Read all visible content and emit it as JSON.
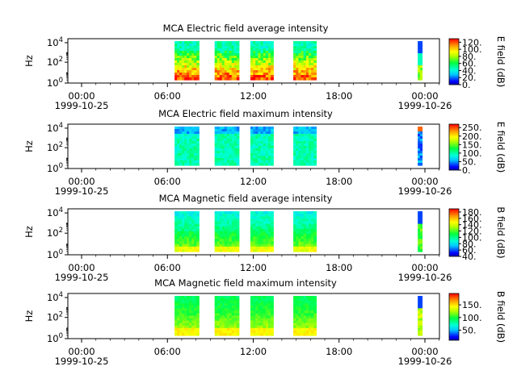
{
  "chart_data": [
    {
      "type": "heatmap",
      "title": "MCA  Electric field average intensity",
      "ylabel": "Hz",
      "yscale": "log",
      "ylim": [
        1,
        40000
      ],
      "y_ticks": [
        {
          "base": "10",
          "exp": "0"
        },
        {
          "base": "10",
          "exp": "2"
        },
        {
          "base": "10",
          "exp": "4"
        }
      ],
      "x_ticks": [
        {
          "time": "00:00",
          "date": "1999-10-25"
        },
        {
          "time": "06:00",
          "date": ""
        },
        {
          "time": "12:00",
          "date": ""
        },
        {
          "time": "18:00",
          "date": ""
        },
        {
          "time": "00:00",
          "date": "1999-10-26"
        }
      ],
      "colorbar_label": "E field (dB)",
      "colorbar_range": [
        0,
        130
      ],
      "colorbar_ticks": [
        "120.",
        "100.",
        "80.",
        "60.",
        "40.",
        "20.",
        "0."
      ],
      "colorbar_tick_values": [
        120,
        100,
        80,
        60,
        40,
        20,
        0
      ],
      "data_intervals_hours": [
        [
          6.5,
          8.2
        ],
        [
          9.3,
          11.0
        ],
        [
          11.8,
          13.4
        ],
        [
          14.8,
          16.4
        ],
        [
          23.5,
          23.8
        ]
      ]
    },
    {
      "type": "heatmap",
      "title": "MCA  Electric field maximum intensity",
      "ylabel": "Hz",
      "yscale": "log",
      "ylim": [
        1,
        40000
      ],
      "y_ticks": [
        {
          "base": "10",
          "exp": "0"
        },
        {
          "base": "10",
          "exp": "2"
        },
        {
          "base": "10",
          "exp": "4"
        }
      ],
      "x_ticks": [
        {
          "time": "00:00",
          "date": "1999-10-25"
        },
        {
          "time": "06:00",
          "date": ""
        },
        {
          "time": "12:00",
          "date": ""
        },
        {
          "time": "18:00",
          "date": ""
        },
        {
          "time": "00:00",
          "date": "1999-10-26"
        }
      ],
      "colorbar_label": "E field (dB)",
      "colorbar_range": [
        0,
        270
      ],
      "colorbar_ticks": [
        "250.",
        "200.",
        "150.",
        "100.",
        "50.",
        "0."
      ],
      "colorbar_tick_values": [
        250,
        200,
        150,
        100,
        50,
        0
      ],
      "data_intervals_hours": [
        [
          6.5,
          8.2
        ],
        [
          9.3,
          11.0
        ],
        [
          11.8,
          13.4
        ],
        [
          14.8,
          16.4
        ],
        [
          23.5,
          23.8
        ]
      ]
    },
    {
      "type": "heatmap",
      "title": "MCA  Magnetic field average intensity",
      "ylabel": "Hz",
      "yscale": "log",
      "ylim": [
        1,
        40000
      ],
      "y_ticks": [
        {
          "base": "10",
          "exp": "0"
        },
        {
          "base": "10",
          "exp": "2"
        },
        {
          "base": "10",
          "exp": "4"
        }
      ],
      "x_ticks": [
        {
          "time": "00:00",
          "date": "1999-10-25"
        },
        {
          "time": "06:00",
          "date": ""
        },
        {
          "time": "12:00",
          "date": ""
        },
        {
          "time": "18:00",
          "date": ""
        },
        {
          "time": "00:00",
          "date": "1999-10-26"
        }
      ],
      "colorbar_label": "B field (dB)",
      "colorbar_range": [
        40,
        190
      ],
      "colorbar_ticks": [
        "180.",
        "160.",
        "140.",
        "120.",
        "100.",
        "80.",
        "60.",
        "40."
      ],
      "colorbar_tick_values": [
        180,
        160,
        140,
        120,
        100,
        80,
        60,
        40
      ],
      "data_intervals_hours": [
        [
          6.5,
          8.2
        ],
        [
          9.3,
          11.0
        ],
        [
          11.8,
          13.4
        ],
        [
          14.8,
          16.4
        ],
        [
          23.5,
          23.8
        ]
      ]
    },
    {
      "type": "heatmap",
      "title": "MCA  Magnetic field maximum intensity",
      "ylabel": "Hz",
      "yscale": "log",
      "ylim": [
        1,
        40000
      ],
      "y_ticks": [
        {
          "base": "10",
          "exp": "0"
        },
        {
          "base": "10",
          "exp": "2"
        },
        {
          "base": "10",
          "exp": "4"
        }
      ],
      "x_ticks": [
        {
          "time": "00:00",
          "date": "1999-10-25"
        },
        {
          "time": "06:00",
          "date": ""
        },
        {
          "time": "12:00",
          "date": ""
        },
        {
          "time": "18:00",
          "date": ""
        },
        {
          "time": "00:00",
          "date": "1999-10-26"
        }
      ],
      "colorbar_label": "B field (dB)",
      "colorbar_range": [
        10,
        195
      ],
      "colorbar_ticks": [
        "150.",
        "100.",
        "50."
      ],
      "colorbar_tick_values": [
        150,
        100,
        50
      ],
      "data_intervals_hours": [
        [
          6.5,
          8.2
        ],
        [
          9.3,
          11.0
        ],
        [
          11.8,
          13.4
        ],
        [
          14.8,
          16.4
        ],
        [
          23.5,
          23.8
        ]
      ]
    }
  ]
}
